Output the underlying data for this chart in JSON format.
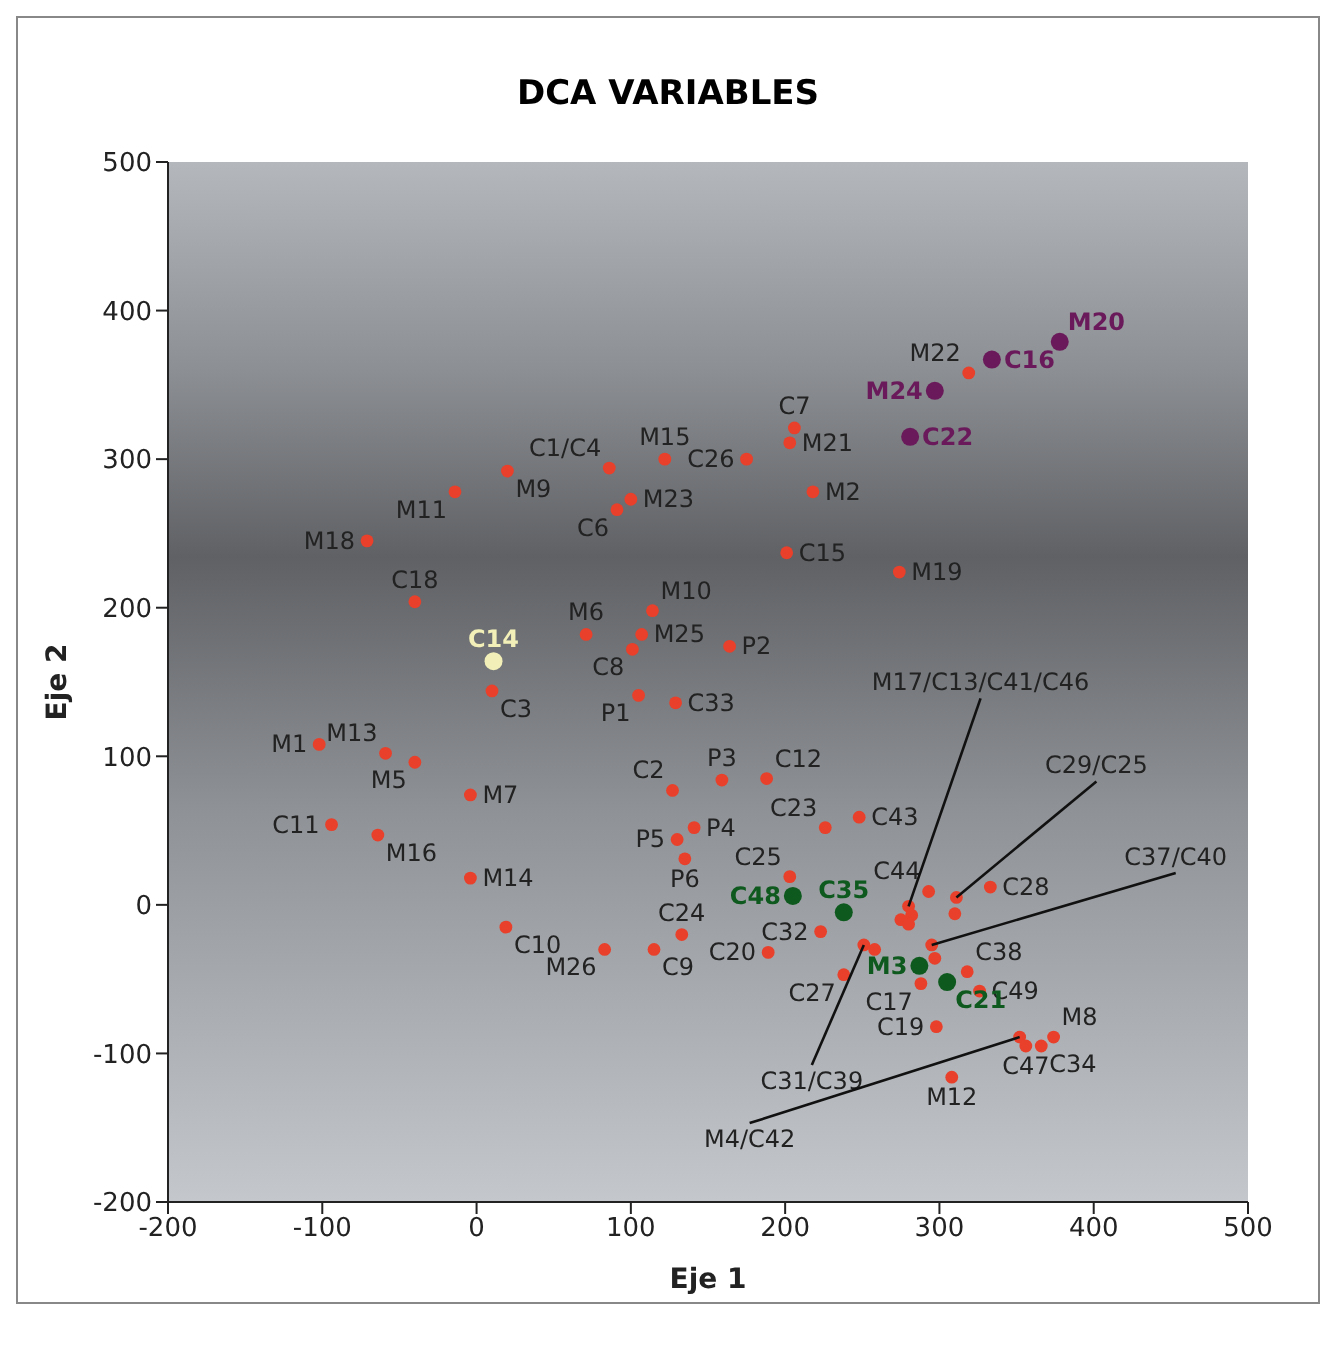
{
  "chart_data": {
    "type": "scatter",
    "title": "DCA VARIABLES",
    "xlabel": "Eje 1",
    "ylabel": "Eje 2",
    "xlim": [
      -200,
      500
    ],
    "xticks": [
      -200,
      -100,
      0,
      100,
      200,
      300,
      400,
      500
    ],
    "ylim": [
      -200,
      500
    ],
    "yticks": [
      -200,
      -100,
      0,
      100,
      200,
      300,
      400,
      500
    ],
    "grid": false,
    "legend": false,
    "marker": "circle",
    "series": [
      {
        "color": "#e8402a",
        "x": [
          86,
          122,
          175,
          20,
          -14,
          91,
          100,
          -71,
          -40,
          114,
          71,
          107,
          164,
          101,
          206,
          203,
          218,
          201,
          274,
          319,
          10,
          105,
          129,
          -102,
          -59,
          -40,
          -4,
          159,
          127,
          -94,
          -64,
          141,
          130,
          135,
          -4,
          19,
          133,
          83,
          115,
          188,
          226,
          248,
          203,
          293,
          333,
          311,
          310,
          280,
          282,
          275,
          280,
          223,
          189,
          251,
          258,
          238,
          295,
          297,
          288,
          318,
          326,
          298,
          308,
          352,
          356,
          366,
          374
        ],
        "values": [
          294,
          300,
          300,
          292,
          278,
          266,
          273,
          245,
          204,
          198,
          182,
          182,
          174,
          172,
          321,
          311,
          278,
          237,
          224,
          358,
          144,
          141,
          136,
          108,
          102,
          96,
          74,
          84,
          77,
          54,
          47,
          52,
          44,
          31,
          18,
          -15,
          -20,
          -30,
          -30,
          85,
          52,
          59,
          19,
          9,
          12,
          5,
          -6,
          -1,
          -7,
          -10,
          -13,
          -18,
          -32,
          -27,
          -30,
          -47,
          -27,
          -36,
          -53,
          -45,
          -58,
          -82,
          -116,
          -89,
          -95,
          -95,
          -89
        ]
      },
      {
        "color": "#6a1a5a",
        "x": [
          297,
          281,
          334,
          378
        ],
        "values": [
          346,
          315,
          367,
          379
        ]
      },
      {
        "color": "#0e5a1e",
        "x": [
          205,
          238,
          287,
          305
        ],
        "values": [
          6,
          -5,
          -41,
          -52
        ]
      },
      {
        "color": "#f2f0b8",
        "x": [
          11
        ],
        "values": [
          164
        ]
      }
    ],
    "annotations": [
      {
        "text": "C1/C4",
        "x": 86,
        "y": 294
      },
      {
        "text": "M15",
        "x": 122,
        "y": 300
      },
      {
        "text": "C26",
        "x": 175,
        "y": 300
      },
      {
        "text": "M9",
        "x": 20,
        "y": 292
      },
      {
        "text": "M11",
        "x": -14,
        "y": 278
      },
      {
        "text": "C6",
        "x": 91,
        "y": 266
      },
      {
        "text": "M23",
        "x": 100,
        "y": 273
      },
      {
        "text": "M18",
        "x": -71,
        "y": 245
      },
      {
        "text": "C18",
        "x": -40,
        "y": 204
      },
      {
        "text": "M10",
        "x": 114,
        "y": 198
      },
      {
        "text": "M6",
        "x": 71,
        "y": 182
      },
      {
        "text": "M25",
        "x": 107,
        "y": 182
      },
      {
        "text": "P2",
        "x": 164,
        "y": 174
      },
      {
        "text": "C8",
        "x": 101,
        "y": 172
      },
      {
        "text": "C7",
        "x": 206,
        "y": 321
      },
      {
        "text": "M21",
        "x": 203,
        "y": 311
      },
      {
        "text": "M2",
        "x": 218,
        "y": 278
      },
      {
        "text": "C15",
        "x": 201,
        "y": 237
      },
      {
        "text": "M19",
        "x": 274,
        "y": 224
      },
      {
        "text": "M22",
        "x": 319,
        "y": 358
      },
      {
        "text": "C3",
        "x": 10,
        "y": 144
      },
      {
        "text": "P1",
        "x": 105,
        "y": 141
      },
      {
        "text": "C33",
        "x": 129,
        "y": 136
      },
      {
        "text": "M1",
        "x": -102,
        "y": 108
      },
      {
        "text": "M13",
        "x": -59,
        "y": 102
      },
      {
        "text": "M5",
        "x": -40,
        "y": 96
      },
      {
        "text": "M7",
        "x": -4,
        "y": 74
      },
      {
        "text": "P3",
        "x": 159,
        "y": 84
      },
      {
        "text": "C2",
        "x": 127,
        "y": 77
      },
      {
        "text": "C11",
        "x": -94,
        "y": 54
      },
      {
        "text": "M16",
        "x": -64,
        "y": 47
      },
      {
        "text": "P4",
        "x": 141,
        "y": 52
      },
      {
        "text": "P5",
        "x": 130,
        "y": 44
      },
      {
        "text": "P6",
        "x": 135,
        "y": 31
      },
      {
        "text": "M14",
        "x": -4,
        "y": 18
      },
      {
        "text": "C10",
        "x": 19,
        "y": -15
      },
      {
        "text": "C24",
        "x": 133,
        "y": -20
      },
      {
        "text": "M26",
        "x": 83,
        "y": -30
      },
      {
        "text": "C9",
        "x": 115,
        "y": -30
      },
      {
        "text": "C12",
        "x": 188,
        "y": 85
      },
      {
        "text": "C23",
        "x": 226,
        "y": 52
      },
      {
        "text": "C43",
        "x": 248,
        "y": 59
      },
      {
        "text": "C25",
        "x": 203,
        "y": 19
      },
      {
        "text": "C44",
        "x": 293,
        "y": 9
      },
      {
        "text": "C28",
        "x": 333,
        "y": 12
      },
      {
        "text": "C29/C25",
        "x": 311,
        "y": 5
      },
      {
        "text": "M17/C13/C41/C46",
        "x": 280,
        "y": -1
      },
      {
        "text": "C32",
        "x": 223,
        "y": -18
      },
      {
        "text": "C20",
        "x": 189,
        "y": -32
      },
      {
        "text": "C31/C39",
        "x": 251,
        "y": -27
      },
      {
        "text": "C27",
        "x": 238,
        "y": -47
      },
      {
        "text": "C37/C40",
        "x": 295,
        "y": -27
      },
      {
        "text": "C17",
        "x": 288,
        "y": -53
      },
      {
        "text": "C38",
        "x": 318,
        "y": -45
      },
      {
        "text": "C49",
        "x": 326,
        "y": -58
      },
      {
        "text": "C19",
        "x": 298,
        "y": -82
      },
      {
        "text": "M12",
        "x": 308,
        "y": -116
      },
      {
        "text": "M4/C42",
        "x": 352,
        "y": -89
      },
      {
        "text": "C47",
        "x": 356,
        "y": -95
      },
      {
        "text": "C34",
        "x": 366,
        "y": -95
      },
      {
        "text": "M8",
        "x": 374,
        "y": -89
      },
      {
        "text": "M24",
        "x": 297,
        "y": 346
      },
      {
        "text": "C22",
        "x": 281,
        "y": 315
      },
      {
        "text": "C16",
        "x": 334,
        "y": 367
      },
      {
        "text": "M20",
        "x": 378,
        "y": 379
      },
      {
        "text": "C48",
        "x": 205,
        "y": 6
      },
      {
        "text": "C35",
        "x": 238,
        "y": -5
      },
      {
        "text": "M3",
        "x": 287,
        "y": -41
      },
      {
        "text": "C21",
        "x": 305,
        "y": -52
      },
      {
        "text": "C14",
        "x": 11,
        "y": 164
      }
    ]
  }
}
